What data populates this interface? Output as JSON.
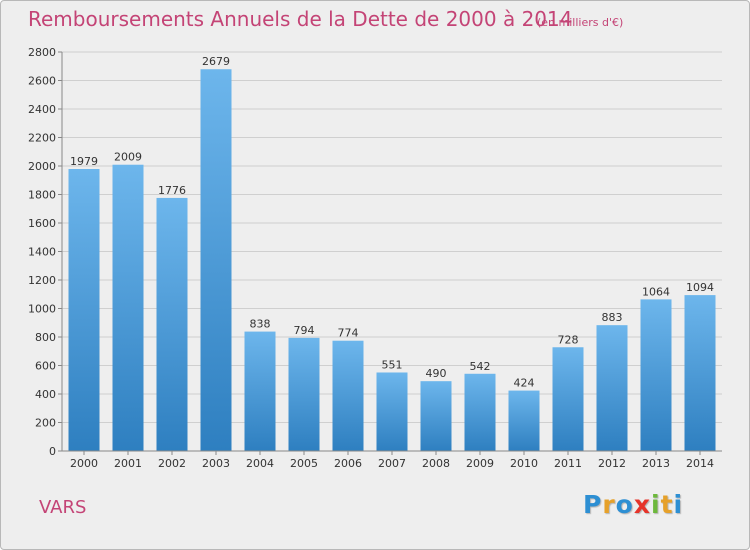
{
  "title": "Remboursements Annuels de la Dette de 2000 à 2014",
  "unit": "(en milliers d'€)",
  "commune": "VARS",
  "logo": {
    "letters": [
      {
        "ch": "P",
        "color": "#2d8fd3"
      },
      {
        "ch": "r",
        "color": "#e6a12a"
      },
      {
        "ch": "o",
        "color": "#2d8fd3"
      },
      {
        "ch": "x",
        "color": "#e6342a"
      },
      {
        "ch": "i",
        "color": "#6db83c"
      },
      {
        "ch": "t",
        "color": "#e6a12a"
      },
      {
        "ch": "i",
        "color": "#2d8fd3"
      }
    ]
  },
  "chart_data": {
    "type": "bar",
    "categories": [
      "2000",
      "2001",
      "2002",
      "2003",
      "2004",
      "2005",
      "2006",
      "2007",
      "2008",
      "2009",
      "2010",
      "2011",
      "2012",
      "2013",
      "2014"
    ],
    "values": [
      1979,
      2009,
      1776,
      2679,
      838,
      794,
      774,
      551,
      490,
      542,
      424,
      728,
      883,
      1064,
      1094
    ],
    "ylim": [
      0,
      2800
    ],
    "yticks": [
      0,
      200,
      400,
      600,
      800,
      1000,
      1200,
      1400,
      1600,
      1800,
      2000,
      2200,
      2400,
      2600,
      2800
    ],
    "grid": true,
    "legend": "none",
    "bar_color_top": "#6db6ec",
    "bar_color_bottom": "#2e7fc0"
  }
}
